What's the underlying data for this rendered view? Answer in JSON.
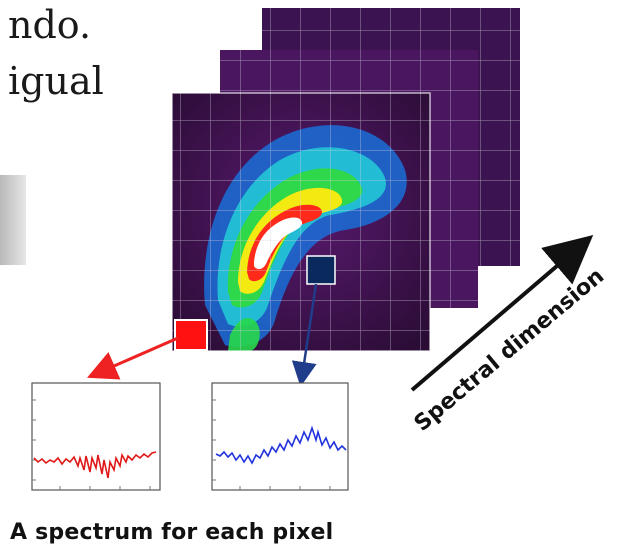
{
  "slide_text": {
    "line1": "ndo.",
    "line2": "igual"
  },
  "diagram": {
    "axis_label": "Spectral dimension",
    "caption": "A spectrum for each pixel",
    "colors": {
      "red_pixel": "#ff1111",
      "navy_pixel": "#0a2a5e",
      "red_arrow": "#ee2222",
      "blue_arrow": "#1f3d8a",
      "red_spectrum": "#e01818",
      "blue_spectrum": "#2233dd",
      "background_layer": "#2a0f3a"
    }
  }
}
